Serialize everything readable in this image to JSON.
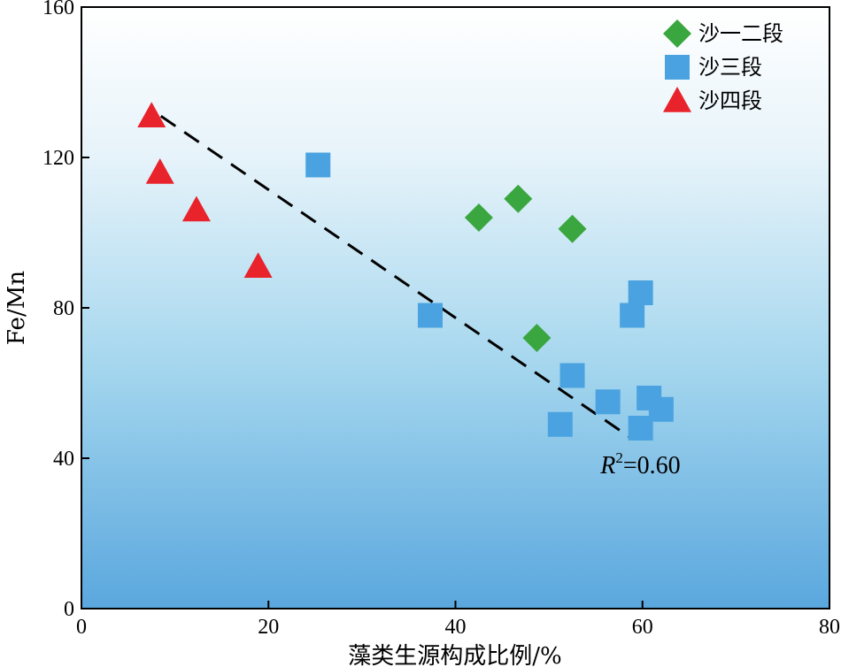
{
  "chart_data": {
    "type": "scatter",
    "xlabel": "藻类生源构成比例/%",
    "ylabel": "Fe/Mn",
    "xlim": [
      0,
      80
    ],
    "ylim": [
      0,
      160
    ],
    "xticks": [
      0,
      20,
      40,
      60,
      80
    ],
    "yticks": [
      0,
      40,
      80,
      120,
      160
    ],
    "legend_position": "top-right",
    "series": [
      {
        "name": "沙一二段",
        "marker": "diamond",
        "color": "#3aa63f",
        "points": [
          {
            "x": 42.5,
            "y": 104
          },
          {
            "x": 46.7,
            "y": 109
          },
          {
            "x": 52.5,
            "y": 101
          },
          {
            "x": 48.7,
            "y": 72
          }
        ]
      },
      {
        "name": "沙三段",
        "marker": "square",
        "color": "#4aa3e0",
        "points": [
          {
            "x": 25.3,
            "y": 118
          },
          {
            "x": 37.3,
            "y": 78
          },
          {
            "x": 52.5,
            "y": 62
          },
          {
            "x": 51.2,
            "y": 49
          },
          {
            "x": 56.3,
            "y": 55
          },
          {
            "x": 58.9,
            "y": 78
          },
          {
            "x": 59.8,
            "y": 84
          },
          {
            "x": 59.8,
            "y": 48
          },
          {
            "x": 60.7,
            "y": 56
          },
          {
            "x": 62.0,
            "y": 53
          }
        ]
      },
      {
        "name": "沙四段",
        "marker": "triangle",
        "color": "#e8232b",
        "points": [
          {
            "x": 7.5,
            "y": 131
          },
          {
            "x": 8.4,
            "y": 116
          },
          {
            "x": 12.3,
            "y": 106
          },
          {
            "x": 18.9,
            "y": 91
          }
        ]
      }
    ],
    "fit_line": {
      "style": "dashed",
      "x": [
        8.5,
        59
      ],
      "y": [
        131,
        45
      ]
    },
    "annotation": {
      "R": "R",
      "sup": "2",
      "rest": "=0.60",
      "x": 55.5,
      "y": 36
    }
  }
}
